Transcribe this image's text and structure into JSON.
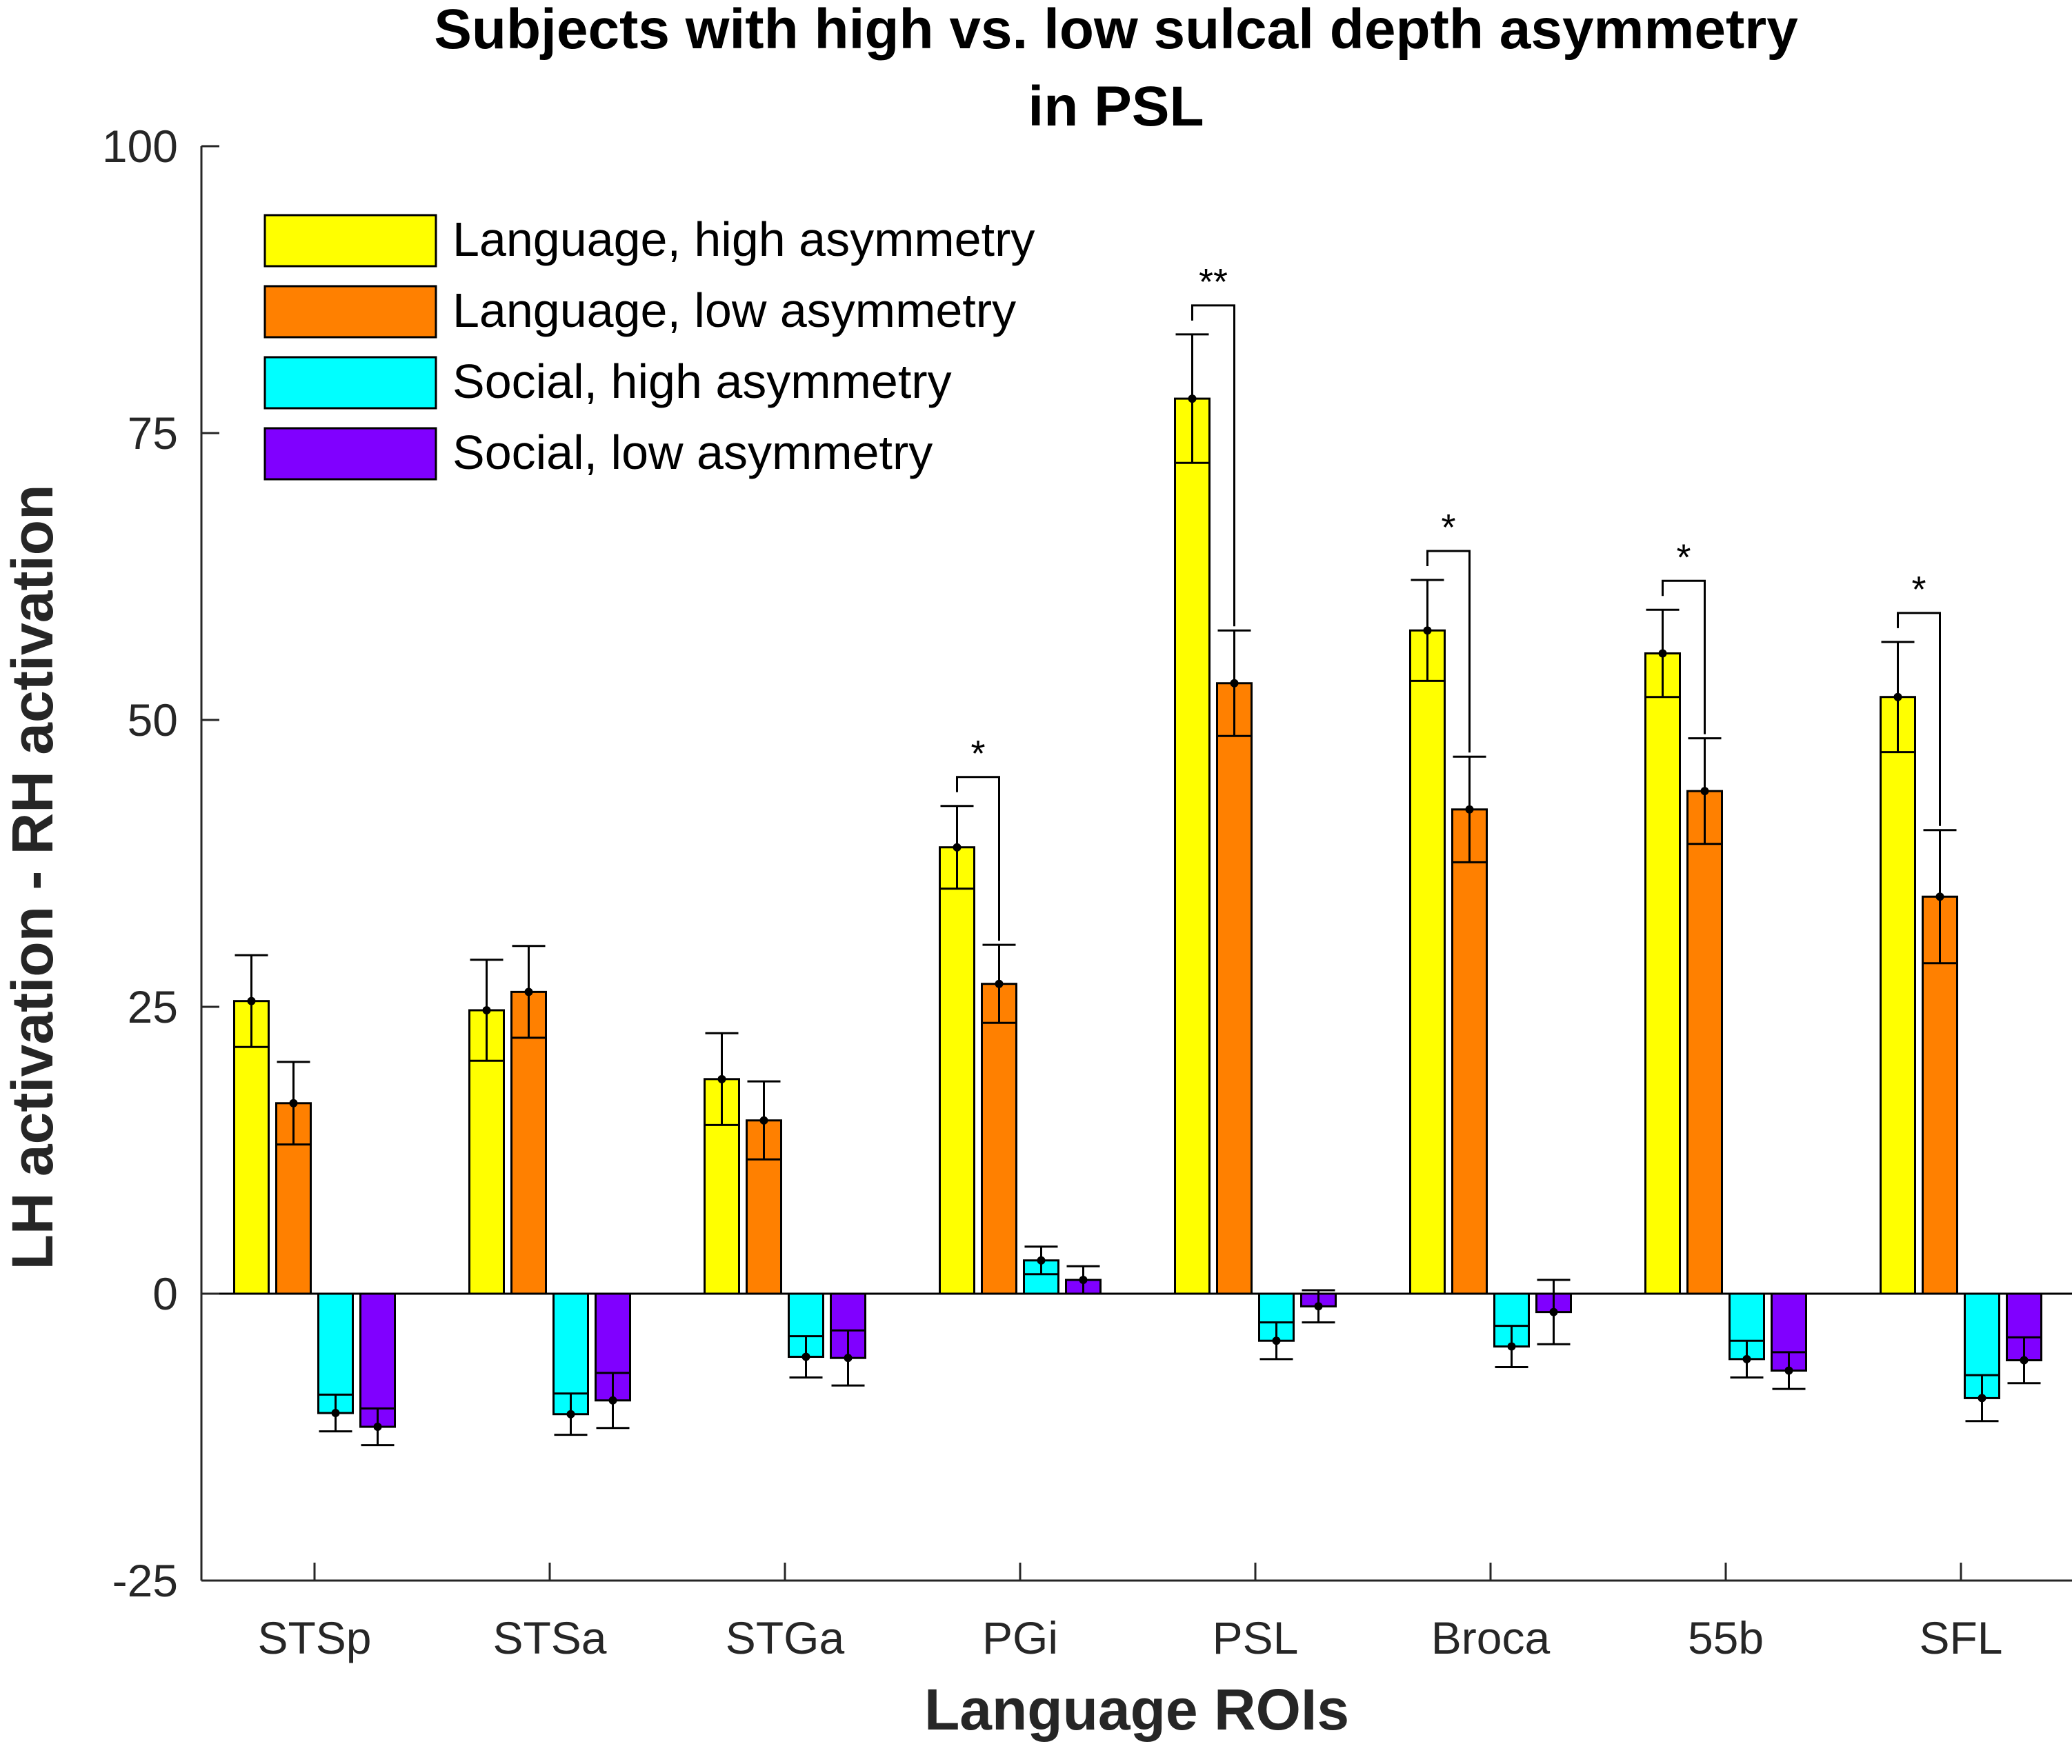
{
  "chart_data": {
    "type": "bar",
    "title": [
      "Subjects with high vs. low sulcal depth asymmetry",
      "in PSL"
    ],
    "xlabel": "Language ROIs",
    "ylabel": "LH activation - RH activation",
    "ylim": [
      -25,
      100
    ],
    "yticks": [
      -25,
      0,
      25,
      50,
      75,
      100
    ],
    "ytick_labels": [
      "-25",
      "0",
      "25",
      "50",
      "75",
      "100"
    ],
    "grid": false,
    "legend_position": "top-left",
    "categories": [
      "STSp",
      "STSa",
      "STGa",
      "PGi",
      "PSL",
      "Broca",
      "55b",
      "SFL"
    ],
    "series": [
      {
        "name": "Language, high asymmetry",
        "color": "#ffff00",
        "values": [
          25.5,
          24.7,
          18.7,
          38.9,
          78.0,
          57.8,
          55.8,
          52.0
        ],
        "errors": [
          4.0,
          4.4,
          4.0,
          3.6,
          5.6,
          4.4,
          3.8,
          4.8
        ]
      },
      {
        "name": "Language, low asymmetry",
        "color": "#ff8000",
        "values": [
          16.6,
          26.3,
          15.1,
          27.0,
          53.2,
          42.2,
          43.8,
          34.6
        ],
        "errors": [
          3.6,
          4.0,
          3.4,
          3.4,
          4.6,
          4.6,
          4.6,
          5.8
        ]
      },
      {
        "name": "Social, high asymmetry",
        "color": "#00ffff",
        "values": [
          -10.4,
          -10.5,
          -5.5,
          2.9,
          -4.1,
          -4.6,
          -5.7,
          -9.1
        ],
        "errors": [
          1.6,
          1.8,
          1.8,
          1.2,
          1.6,
          1.8,
          1.6,
          2.0
        ]
      },
      {
        "name": "Social, low asymmetry",
        "color": "#8000ff",
        "values": [
          -11.6,
          -9.3,
          -5.6,
          1.2,
          -1.1,
          -1.6,
          -6.7,
          -5.8
        ],
        "errors": [
          1.6,
          2.4,
          2.4,
          1.2,
          1.4,
          2.8,
          1.6,
          2.0
        ]
      }
    ],
    "significance": [
      {
        "category": "PGi",
        "label": "*"
      },
      {
        "category": "PSL",
        "label": "**"
      },
      {
        "category": "Broca",
        "label": "*"
      },
      {
        "category": "55b",
        "label": "*"
      },
      {
        "category": "SFL",
        "label": "*"
      }
    ]
  }
}
